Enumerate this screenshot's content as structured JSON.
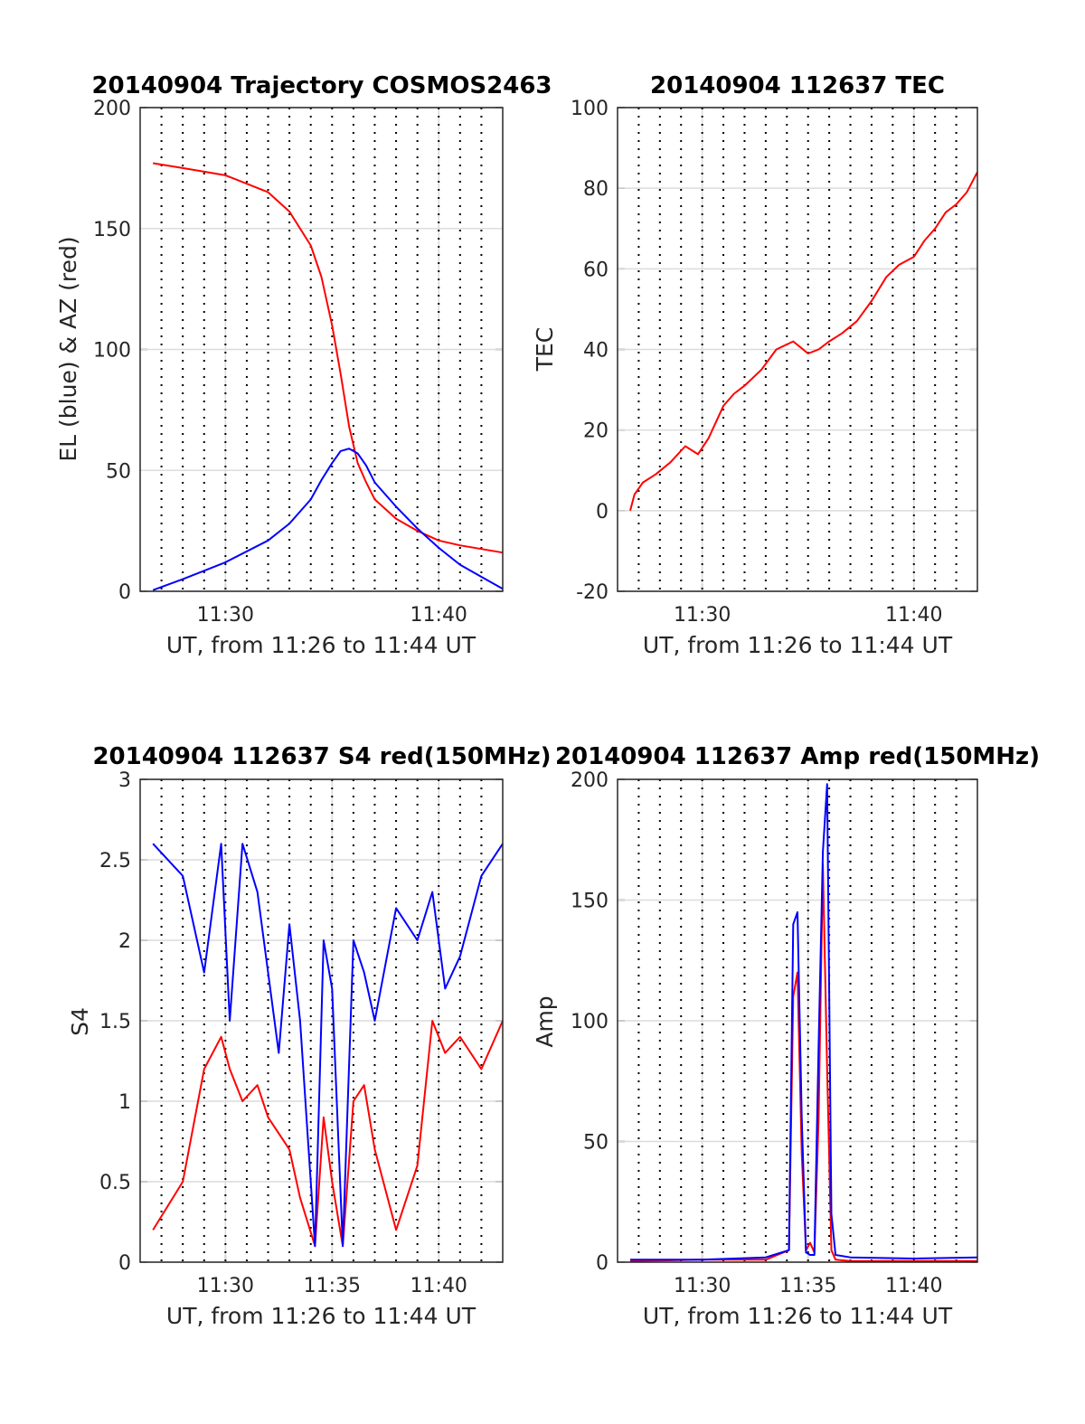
{
  "colors": {
    "red": "#ff0000",
    "blue": "#0000ff",
    "grid": "#dcdcdc",
    "axis": "#262626"
  },
  "chart_data": [
    {
      "id": "traj",
      "type": "line",
      "title": "20140904 Trajectory COSMOS2463",
      "xlabel": "UT, from 11:26 to 11:44 UT",
      "ylabel": "EL (blue) & AZ (red)",
      "xlim": [
        11.0,
        28.0
      ],
      "ylim": [
        0,
        200
      ],
      "xticks": [
        15,
        25
      ],
      "xtick_labels": [
        "11:30",
        "11:40"
      ],
      "yticks": [
        0,
        50,
        100,
        150,
        200
      ],
      "ytick_labels": [
        "0",
        "50",
        "100",
        "150",
        "200"
      ],
      "grid": true,
      "x": [
        11.6,
        13,
        15,
        17,
        18,
        19,
        19.5,
        20,
        20.4,
        20.8,
        21.2,
        21.6,
        22,
        23,
        24,
        25,
        26,
        27,
        28
      ],
      "series": [
        {
          "color": "red",
          "values": [
            177,
            175,
            172,
            165,
            157,
            143,
            130,
            110,
            90,
            68,
            53,
            45,
            38,
            30,
            25,
            21,
            19,
            17.5,
            16
          ]
        },
        {
          "color": "blue",
          "values": [
            0.5,
            5,
            12,
            21,
            28,
            38,
            46,
            53,
            58,
            59,
            57,
            52,
            45,
            35,
            26,
            18,
            11,
            6,
            1
          ]
        }
      ]
    },
    {
      "id": "tec",
      "type": "line",
      "title": "20140904 112637 TEC",
      "xlabel": "UT, from 11:26 to 11:44 UT",
      "ylabel": "TEC",
      "xlim": [
        11.0,
        28.0
      ],
      "ylim": [
        -20,
        100
      ],
      "xticks": [
        15,
        25
      ],
      "xtick_labels": [
        "11:30",
        "11:40"
      ],
      "yticks": [
        -20,
        0,
        20,
        40,
        60,
        80,
        100
      ],
      "ytick_labels": [
        "-20",
        "0",
        "20",
        "40",
        "60",
        "80",
        "100"
      ],
      "grid": true,
      "x": [
        11.6,
        11.8,
        12.2,
        12.8,
        13.5,
        14.2,
        14.8,
        15.3,
        16,
        16.5,
        17,
        17.8,
        18.5,
        19.3,
        20,
        20.5,
        21,
        21.6,
        22.3,
        23,
        23.7,
        24.3,
        25,
        25.5,
        26,
        26.5,
        27,
        27.5,
        28
      ],
      "series": [
        {
          "color": "red",
          "values": [
            0,
            4,
            7,
            9,
            12,
            16,
            14,
            18,
            26,
            29,
            31,
            35,
            40,
            42,
            39,
            40,
            42,
            44,
            47,
            52,
            58,
            61,
            63,
            67,
            70,
            74,
            76,
            79,
            84
          ]
        }
      ]
    },
    {
      "id": "s4",
      "type": "line",
      "title": "20140904 112637 S4 red(150MHz)",
      "xlabel": "UT, from 11:26 to 11:44 UT",
      "ylabel": "S4",
      "xlim": [
        11.0,
        28.0
      ],
      "ylim": [
        0,
        3
      ],
      "xticks": [
        15,
        20,
        25
      ],
      "xtick_labels": [
        "11:30",
        "11:35",
        "11:40"
      ],
      "yticks": [
        0,
        0.5,
        1,
        1.5,
        2,
        2.5,
        3
      ],
      "ytick_labels": [
        "0",
        "0.5",
        "1",
        "1.5",
        "2",
        "2.5",
        "3"
      ],
      "grid": true,
      "x": [
        11.6,
        13,
        14,
        14.8,
        15.2,
        15.8,
        16.5,
        17,
        17.5,
        18,
        18.5,
        19.2,
        19.6,
        20,
        20.5,
        21,
        21.5,
        22,
        23,
        24,
        24.7,
        25.3,
        26,
        27,
        28
      ],
      "series": [
        {
          "color": "red",
          "values": [
            0.2,
            0.5,
            1.2,
            1.4,
            1.2,
            1.0,
            1.1,
            0.9,
            0.8,
            0.7,
            0.4,
            0.1,
            0.9,
            0.5,
            0.1,
            1.0,
            1.1,
            0.7,
            0.2,
            0.6,
            1.5,
            1.3,
            1.4,
            1.2,
            1.5
          ]
        },
        {
          "color": "blue",
          "values": [
            2.6,
            2.4,
            1.8,
            2.6,
            1.5,
            2.6,
            2.3,
            1.8,
            1.3,
            2.1,
            1.5,
            0.1,
            2.0,
            1.7,
            0.1,
            2.0,
            1.8,
            1.5,
            2.2,
            2.0,
            2.3,
            1.7,
            1.9,
            2.4,
            2.6
          ]
        }
      ]
    },
    {
      "id": "amp",
      "type": "line",
      "title": "20140904 112637 Amp red(150MHz)",
      "xlabel": "UT, from 11:26 to 11:44 UT",
      "ylabel": "Amp",
      "xlim": [
        11.0,
        28.0
      ],
      "ylim": [
        0,
        200
      ],
      "xticks": [
        15,
        20,
        25
      ],
      "xtick_labels": [
        "11:30",
        "11:35",
        "11:40"
      ],
      "yticks": [
        0,
        50,
        100,
        150,
        200
      ],
      "ytick_labels": [
        "0",
        "50",
        "100",
        "150",
        "200"
      ],
      "grid": true,
      "x": [
        11.6,
        15,
        18,
        19.1,
        19.3,
        19.5,
        19.7,
        19.9,
        20.1,
        20.3,
        20.5,
        20.7,
        20.9,
        21.1,
        21.3,
        22,
        25,
        28
      ],
      "series": [
        {
          "color": "red",
          "values": [
            0.5,
            1,
            1,
            5,
            110,
            120,
            45,
            5,
            8,
            4,
            60,
            165,
            80,
            5,
            1,
            0.5,
            0.5,
            0.5
          ]
        },
        {
          "color": "blue",
          "values": [
            1,
            1,
            2,
            5,
            140,
            145,
            60,
            4,
            3,
            3,
            90,
            170,
            198,
            20,
            3,
            2,
            1.5,
            2
          ]
        }
      ]
    }
  ]
}
